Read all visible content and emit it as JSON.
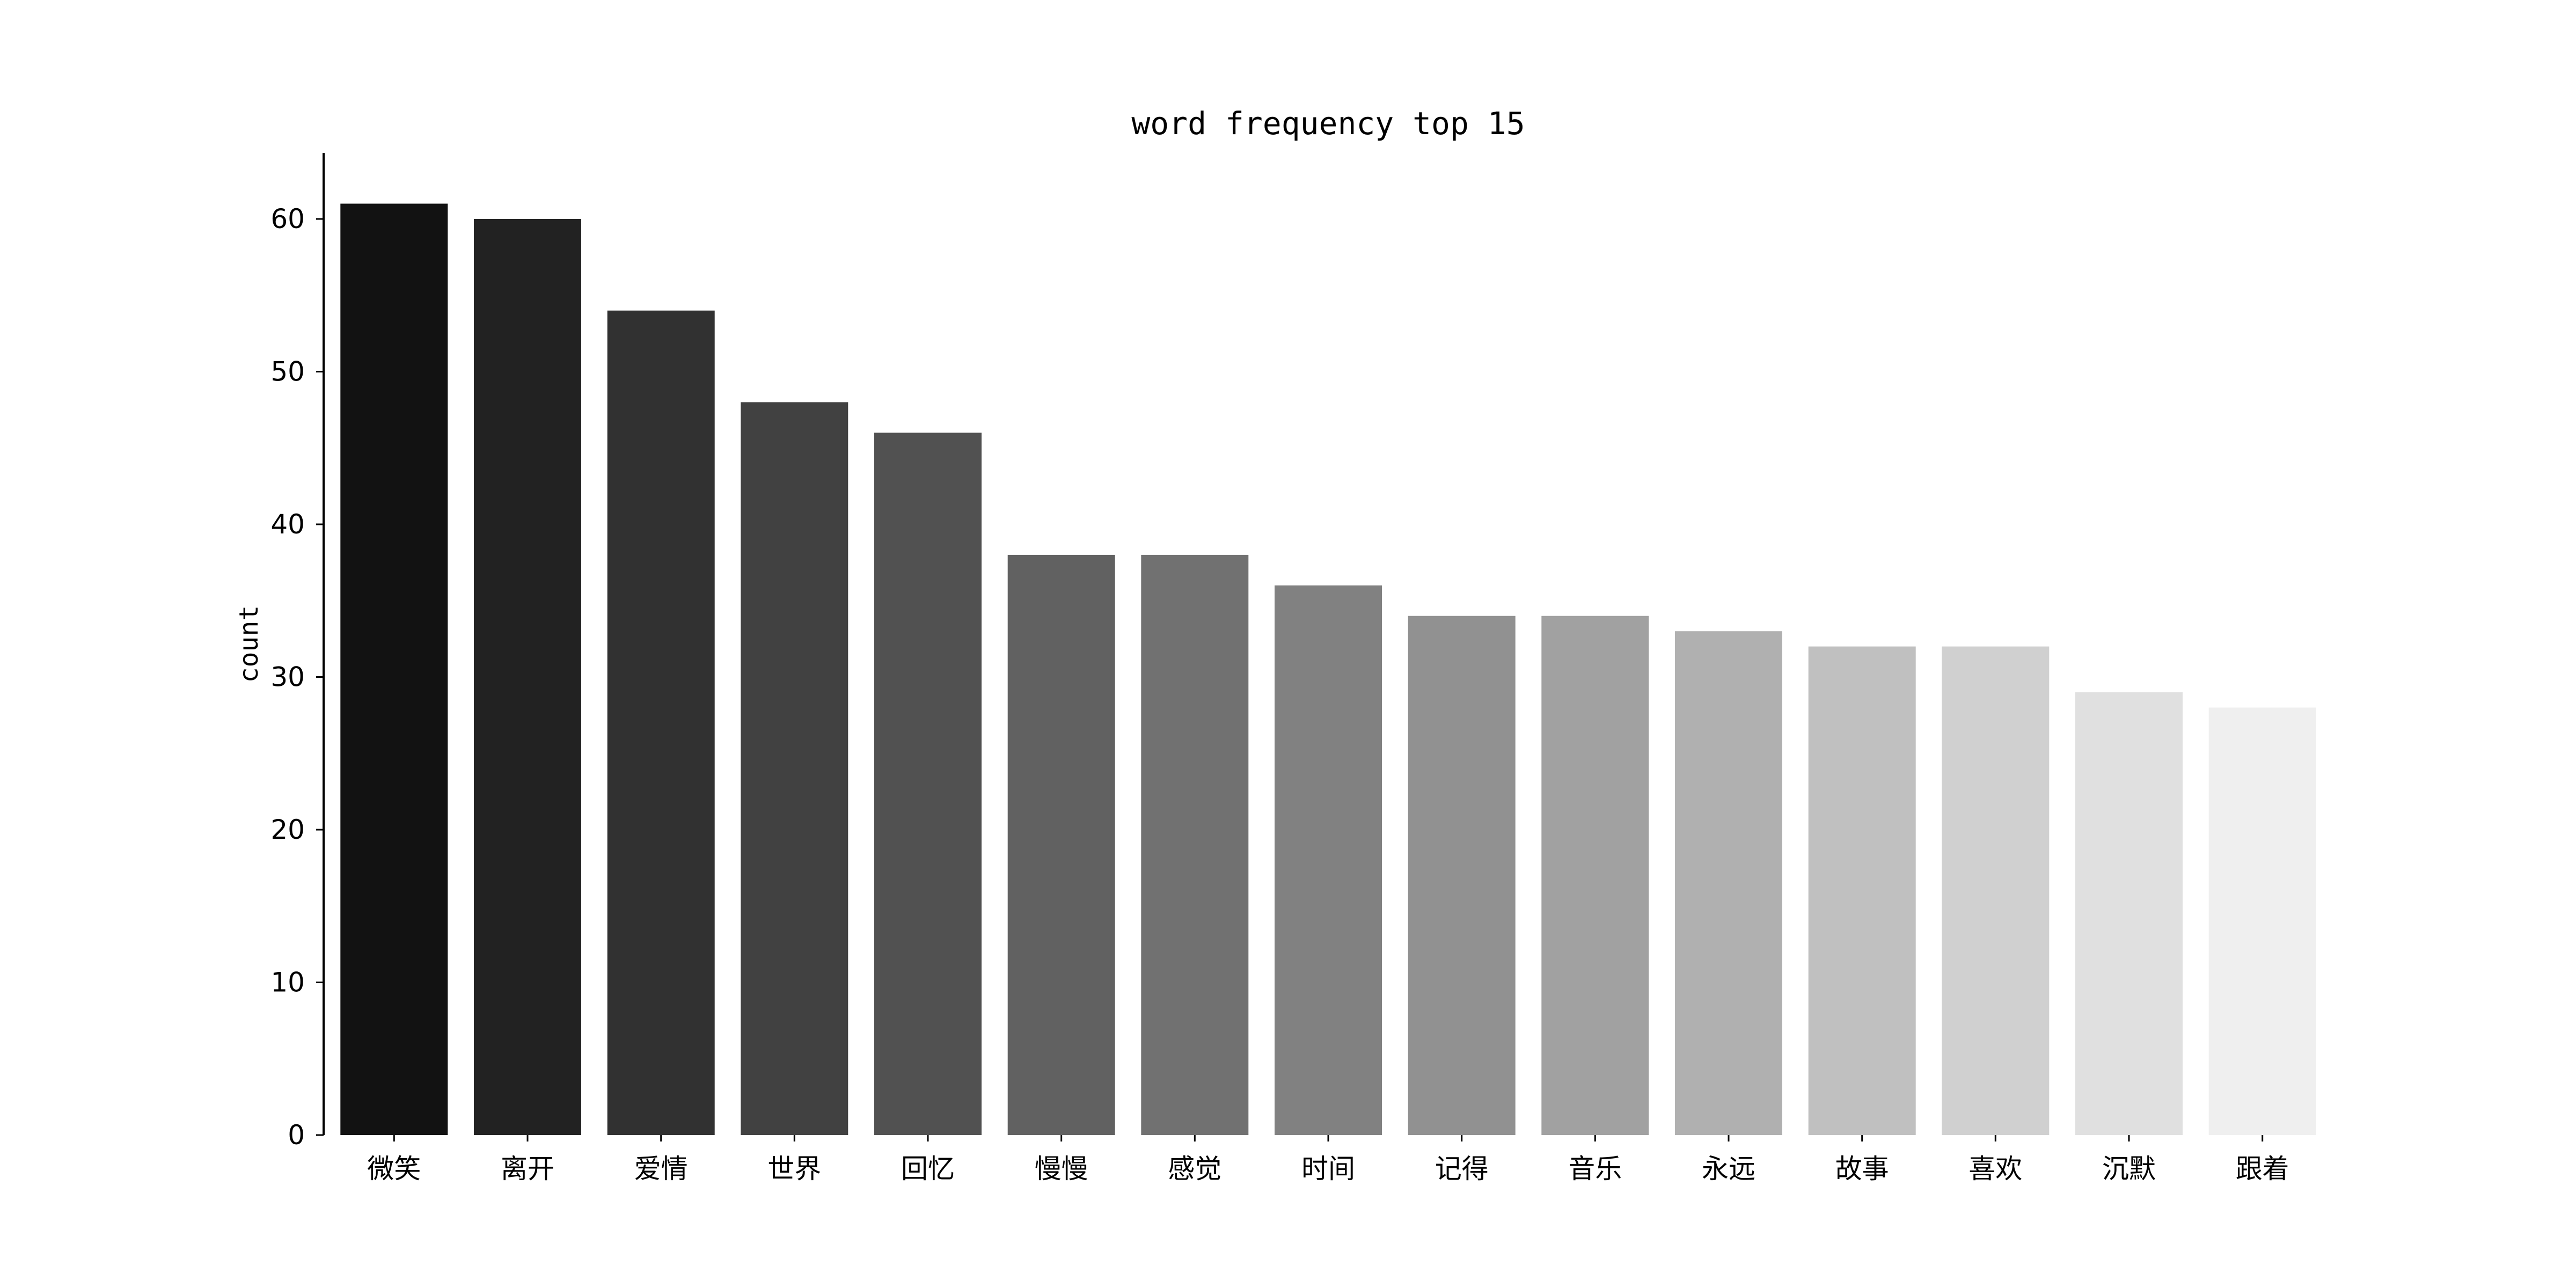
{
  "chart_data": {
    "type": "bar",
    "title": "word frequency top 15",
    "xlabel": "",
    "ylabel": "count",
    "categories": [
      "微笑",
      "离开",
      "爱情",
      "世界",
      "回忆",
      "慢慢",
      "感觉",
      "时间",
      "记得",
      "音乐",
      "永远",
      "故事",
      "喜欢",
      "沉默",
      "跟着"
    ],
    "values": [
      61,
      60,
      54,
      48,
      46,
      38,
      38,
      36,
      34,
      34,
      33,
      32,
      32,
      29,
      28
    ],
    "ylim": [
      0,
      64
    ],
    "yticks": [
      0,
      10,
      20,
      30,
      40,
      50,
      60
    ],
    "colors": [
      "#121212",
      "#222222",
      "#313131",
      "#414141",
      "#515151",
      "#616161",
      "#717171",
      "#818181",
      "#919191",
      "#a1a1a1",
      "#b0b0b0",
      "#c0c0c0",
      "#d0d0d0",
      "#e0e0e0",
      "#efefef"
    ],
    "grid": false,
    "legend": "none"
  }
}
